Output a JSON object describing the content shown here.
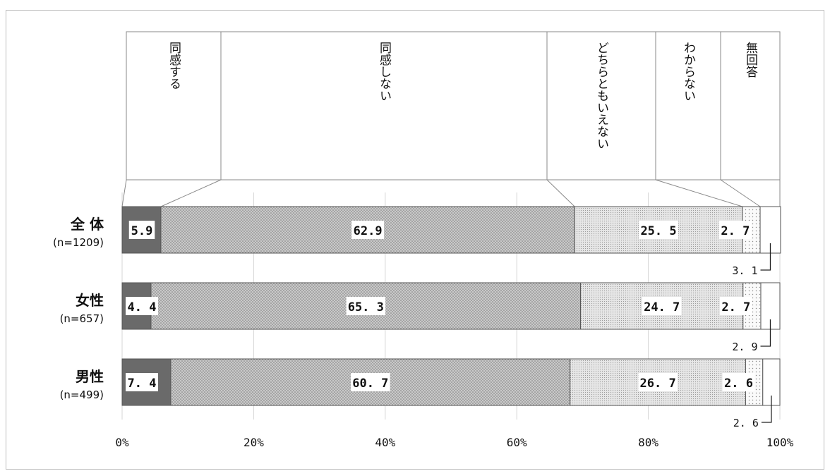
{
  "chart_data": {
    "type": "bar",
    "orientation": "horizontal-stacked-100",
    "categories": [
      {
        "name": "全 体",
        "n": "(n=1209)"
      },
      {
        "name": "女性",
        "n": "(n=657)"
      },
      {
        "name": "男性",
        "n": "(n=499)"
      }
    ],
    "series": [
      {
        "name": "同感する",
        "values": [
          5.9,
          4.4,
          7.4
        ],
        "labels": [
          "5.9",
          "4. 4",
          "7. 4"
        ]
      },
      {
        "name": "同感しない",
        "values": [
          62.9,
          65.3,
          60.7
        ],
        "labels": [
          "62.9",
          "65. 3",
          "60. 7"
        ]
      },
      {
        "name": "どちらともいえない",
        "values": [
          25.5,
          24.7,
          26.7
        ],
        "labels": [
          "25. 5",
          "24. 7",
          "26. 7"
        ]
      },
      {
        "name": "わからない",
        "values": [
          2.7,
          2.7,
          2.6
        ],
        "labels": [
          "2. 7",
          "2. 7",
          "2. 6"
        ]
      },
      {
        "name": "無回答",
        "values": [
          3.1,
          2.9,
          2.6
        ],
        "labels": [
          "3. 1",
          "2. 9",
          "2. 6"
        ]
      }
    ],
    "xlim": [
      0,
      100
    ],
    "xticks": [
      "0%",
      "20%",
      "40%",
      "60%",
      "80%",
      "100%"
    ],
    "grid": true,
    "legend_placement": "top",
    "colors": {
      "同感する": "#6e6e6e",
      "同感しない": "#bdbdbd",
      "どちらともいえない": "#dedede",
      "わからない": "#f4f4f4",
      "無回答": "#ffffff"
    }
  }
}
